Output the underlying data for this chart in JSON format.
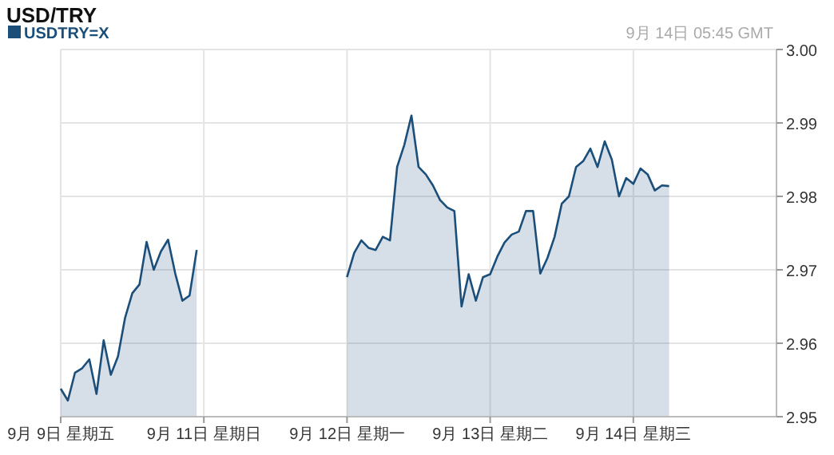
{
  "chart_data": {
    "type": "area",
    "title": "USD/TRY",
    "annotations": [
      "9月 14日 05:45 GMT"
    ],
    "categories": [
      "9月 9日 星期五",
      null,
      null,
      null,
      null,
      null,
      null,
      null,
      null,
      null,
      null,
      null,
      null,
      null,
      null,
      null,
      null,
      null,
      null,
      null,
      "9月 11日 星期日",
      null,
      null,
      null,
      null,
      null,
      null,
      null,
      null,
      null,
      null,
      null,
      null,
      null,
      null,
      null,
      null,
      null,
      null,
      null,
      "9月 12日 星期一",
      null,
      null,
      null,
      null,
      null,
      null,
      null,
      null,
      null,
      null,
      null,
      null,
      null,
      null,
      null,
      null,
      null,
      null,
      null,
      "9月 13日 星期二",
      null,
      null,
      null,
      null,
      null,
      null,
      null,
      null,
      null,
      null,
      null,
      null,
      null,
      null,
      null,
      null,
      null,
      null,
      null,
      "9月 14日 星期三",
      null,
      null,
      null,
      null,
      null,
      null,
      null,
      null,
      null,
      null,
      null,
      null,
      null,
      null,
      null,
      null,
      null,
      null,
      null
    ],
    "ylim": [
      2.95,
      3.0
    ],
    "yticks": [
      2.95,
      2.96,
      2.97,
      2.98,
      2.99,
      {
        "value": 3,
        "label": "3.00"
      }
    ],
    "grid": true,
    "legend": "top left",
    "line_style": "solid",
    "marker": "none",
    "series": [
      {
        "name": "USDTRY=X",
        "color": "#1b4f7a",
        "values": [
          2.9538,
          2.9522,
          2.956,
          2.9566,
          2.9578,
          2.9531,
          2.9604,
          2.9557,
          2.9582,
          2.9635,
          2.9668,
          2.968,
          2.9738,
          2.97,
          2.9725,
          2.9741,
          2.9695,
          2.9658,
          2.9665,
          2.9727,
          null,
          null,
          null,
          null,
          null,
          null,
          null,
          null,
          null,
          null,
          null,
          null,
          null,
          null,
          null,
          null,
          null,
          null,
          null,
          null,
          2.969,
          2.9723,
          2.974,
          2.973,
          2.9727,
          2.9745,
          2.974,
          2.984,
          2.987,
          2.991,
          2.984,
          2.983,
          2.9815,
          2.9795,
          2.9785,
          2.978,
          2.965,
          2.9694,
          2.9658,
          2.969,
          2.9694,
          2.9718,
          2.9737,
          2.9748,
          2.9752,
          2.978,
          2.978,
          2.9695,
          2.9716,
          2.9745,
          2.979,
          2.98,
          2.984,
          2.9848,
          2.9865,
          2.984,
          2.9875,
          2.985,
          2.98,
          2.9825,
          2.9817,
          2.9838,
          2.983,
          2.9808,
          2.9815,
          2.9814,
          null,
          null,
          null,
          null,
          null,
          null,
          null,
          null,
          null,
          null,
          null,
          null,
          null,
          null
        ]
      }
    ]
  }
}
